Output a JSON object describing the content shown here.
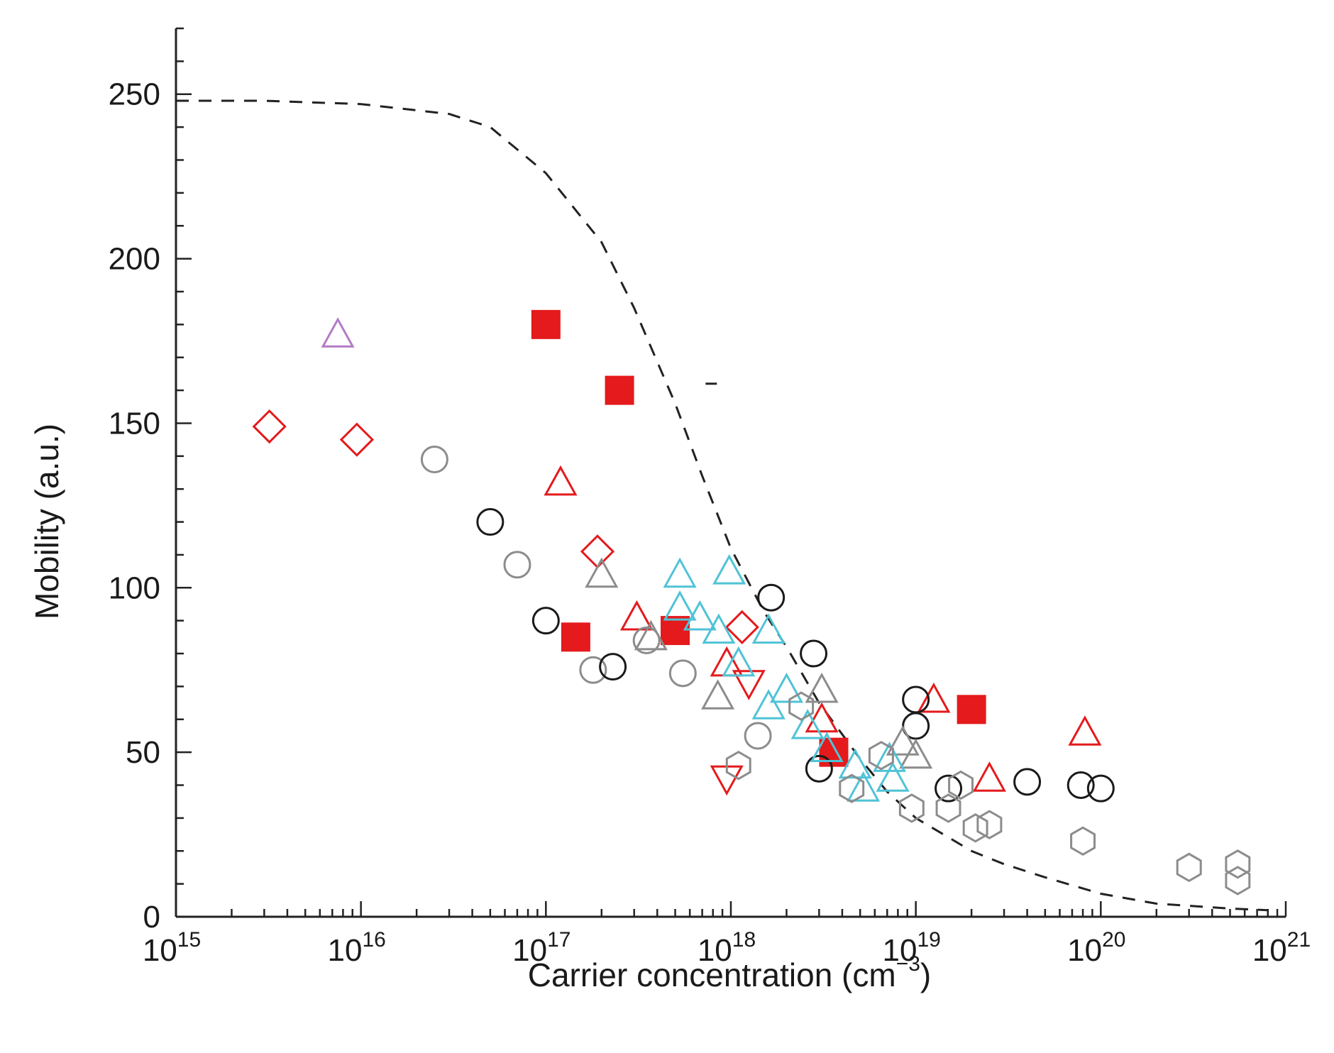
{
  "chart_data": {
    "type": "scatter",
    "title": "",
    "xlabel": "Carrier concentration (cm",
    "xlabel_sup": "−3",
    "xlabel_end": ")",
    "ylabel": "Mobility (a.u.)",
    "xscale": "log",
    "xlim": [
      1000000000000000.0,
      1e+21
    ],
    "ylim": [
      0,
      270
    ],
    "x_ticks": [
      {
        "value": 1000000000000000.0,
        "base": "10",
        "exp": "15"
      },
      {
        "value": 1e+16,
        "base": "10",
        "exp": "16"
      },
      {
        "value": 1e+17,
        "base": "10",
        "exp": "17"
      },
      {
        "value": 1e+18,
        "base": "10",
        "exp": "18"
      },
      {
        "value": 1e+19,
        "base": "10",
        "exp": "19"
      },
      {
        "value": 1e+20,
        "base": "10",
        "exp": "20"
      },
      {
        "value": 1e+21,
        "base": "10",
        "exp": "21"
      }
    ],
    "y_ticks": [
      {
        "value": 0,
        "label": "0"
      },
      {
        "value": 50,
        "label": "50"
      },
      {
        "value": 100,
        "label": "100"
      },
      {
        "value": 150,
        "label": "150"
      },
      {
        "value": 200,
        "label": "200"
      },
      {
        "value": 250,
        "label": "250"
      }
    ],
    "y_minor_step": 10,
    "grid": false,
    "legend": "none",
    "fit_curve": {
      "name": "model",
      "style": "dashed",
      "color": "#222222",
      "points": [
        [
          1000000000000000.0,
          248
        ],
        [
          3000000000000000.0,
          248
        ],
        [
          1e+16,
          247
        ],
        [
          3e+16,
          244
        ],
        [
          5e+16,
          240
        ],
        [
          1e+17,
          226
        ],
        [
          2e+17,
          205
        ],
        [
          3e+17,
          185
        ],
        [
          5e+17,
          156
        ],
        [
          7e+17,
          134
        ],
        [
          1e+18,
          112
        ],
        [
          1.5e+18,
          93
        ],
        [
          2e+18,
          82
        ],
        [
          3e+18,
          65
        ],
        [
          5e+18,
          48
        ],
        [
          7e+18,
          38
        ],
        [
          1e+19,
          30
        ],
        [
          2e+19,
          20
        ],
        [
          3e+19,
          16
        ],
        [
          5e+19,
          12
        ],
        [
          1e+20,
          7
        ],
        [
          2e+20,
          4
        ],
        [
          5e+20,
          2.5
        ],
        [
          8e+20,
          2
        ]
      ]
    },
    "extra_dash": {
      "points": [
        [
          8.4e+17,
          162
        ],
        [
          7.3e+17,
          162
        ]
      ],
      "color": "#222222"
    },
    "series": [
      {
        "name": "red filled squares",
        "marker": "square",
        "fill": "#e41a1c",
        "stroke": "#e41a1c",
        "points": [
          [
            1e+17,
            180
          ],
          [
            2.5e+17,
            160
          ],
          [
            1.45e+17,
            85
          ],
          [
            5e+17,
            87
          ],
          [
            3.6e+18,
            50
          ],
          [
            2e+19,
            63
          ]
        ]
      },
      {
        "name": "red open diamonds",
        "marker": "diamond",
        "fill": "none",
        "stroke": "#e41a1c",
        "points": [
          [
            3200000000000000.0,
            149
          ],
          [
            9500000000000000.0,
            145
          ],
          [
            1.9e+17,
            111
          ],
          [
            1.15e+18,
            88
          ]
        ]
      },
      {
        "name": "red open triangles up",
        "marker": "triangle-up",
        "fill": "none",
        "stroke": "#e41a1c",
        "points": [
          [
            1.2e+17,
            132
          ],
          [
            3.1e+17,
            91
          ],
          [
            9.5e+17,
            77
          ],
          [
            3.1e+18,
            60
          ],
          [
            1.25e+19,
            66
          ],
          [
            2.5e+19,
            42
          ],
          [
            8.2e+19,
            56
          ]
        ]
      },
      {
        "name": "red open triangles down",
        "marker": "triangle-down",
        "fill": "none",
        "stroke": "#e41a1c",
        "points": [
          [
            9.5e+17,
            42
          ],
          [
            1.25e+18,
            71
          ]
        ]
      },
      {
        "name": "purple open triangle",
        "marker": "triangle-up",
        "fill": "none",
        "stroke": "#b27bc4",
        "points": [
          [
            7500000000000000.0,
            177
          ]
        ]
      },
      {
        "name": "gray open circles",
        "marker": "circle",
        "fill": "none",
        "stroke": "#8c8c8c",
        "points": [
          [
            2.5e+16,
            139
          ],
          [
            7e+16,
            107
          ],
          [
            1.8e+17,
            75
          ],
          [
            3.5e+17,
            84
          ],
          [
            5.5e+17,
            74
          ],
          [
            1.4e+18,
            55
          ]
        ]
      },
      {
        "name": "black open circles",
        "marker": "circle",
        "fill": "none",
        "stroke": "#1a1a1a",
        "points": [
          [
            5e+16,
            120
          ],
          [
            1e+17,
            90
          ],
          [
            2.3e+17,
            76
          ],
          [
            1.65e+18,
            97
          ],
          [
            2.8e+18,
            80
          ],
          [
            3e+18,
            45
          ],
          [
            1e+19,
            66
          ],
          [
            1e+19,
            58
          ],
          [
            1.5e+19,
            39
          ],
          [
            4e+19,
            41
          ],
          [
            7.8e+19,
            40
          ],
          [
            1e+20,
            39
          ]
        ]
      },
      {
        "name": "gray open triangles",
        "marker": "triangle-up",
        "fill": "none",
        "stroke": "#8c8c8c",
        "points": [
          [
            2e+17,
            104
          ],
          [
            3.7e+17,
            85
          ],
          [
            8.5e+17,
            67
          ],
          [
            3.1e+18,
            69
          ],
          [
            8.5e+18,
            53
          ],
          [
            1e+19,
            49
          ]
        ]
      },
      {
        "name": "cyan open triangles",
        "marker": "triangle-up",
        "fill": "none",
        "stroke": "#4fc3d6",
        "points": [
          [
            5.3e+17,
            104
          ],
          [
            9.8e+17,
            105
          ],
          [
            5.3e+17,
            94
          ],
          [
            6.8e+17,
            91
          ],
          [
            8.6e+17,
            87
          ],
          [
            1.6e+18,
            87
          ],
          [
            1.1e+18,
            77
          ],
          [
            2e+18,
            69
          ],
          [
            1.6e+18,
            64
          ],
          [
            2.6e+18,
            58
          ],
          [
            3.3e+18,
            51
          ],
          [
            4.7e+18,
            46
          ],
          [
            5.2e+18,
            39
          ],
          [
            7.2e+18,
            48
          ],
          [
            7.5e+18,
            42
          ]
        ]
      },
      {
        "name": "gray open hexagons",
        "marker": "hexagon",
        "fill": "none",
        "stroke": "#8c8c8c",
        "points": [
          [
            1.1e+18,
            46
          ],
          [
            2.4e+18,
            64
          ],
          [
            4.5e+18,
            39
          ],
          [
            6.5e+18,
            49
          ],
          [
            9.5e+18,
            33
          ],
          [
            1.5e+19,
            33
          ],
          [
            1.75e+19,
            40
          ],
          [
            2.1e+19,
            27
          ],
          [
            2.5e+19,
            28
          ],
          [
            8e+19,
            23
          ],
          [
            3e+20,
            15
          ],
          [
            5.5e+20,
            16
          ],
          [
            5.5e+20,
            11
          ]
        ]
      }
    ]
  }
}
